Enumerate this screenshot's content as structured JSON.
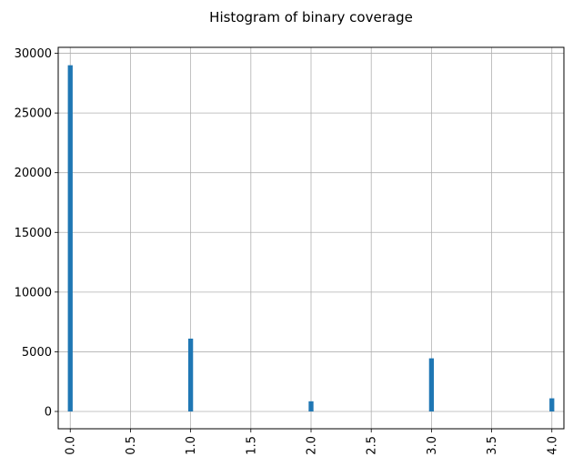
{
  "chart_data": {
    "type": "bar",
    "title": "Histogram of binary coverage",
    "xlabel": "",
    "ylabel": "",
    "grid": true,
    "bar_color": "#1f77b4",
    "x": [
      0.0,
      1.0,
      2.0,
      3.0,
      4.0
    ],
    "values": [
      29000,
      6100,
      850,
      4450,
      1100
    ],
    "xlim": [
      -0.1,
      4.1
    ],
    "ylim": [
      -1450,
      30500
    ],
    "xticks": [
      0.0,
      0.5,
      1.0,
      1.5,
      2.0,
      2.5,
      3.0,
      3.5,
      4.0
    ],
    "xtick_labels": [
      "0.0",
      "0.5",
      "1.0",
      "1.5",
      "2.0",
      "2.5",
      "3.0",
      "3.5",
      "4.0"
    ],
    "yticks": [
      0,
      5000,
      10000,
      15000,
      20000,
      25000,
      30000
    ],
    "ytick_labels": [
      "0",
      "5000",
      "10000",
      "15000",
      "20000",
      "25000",
      "30000"
    ]
  }
}
